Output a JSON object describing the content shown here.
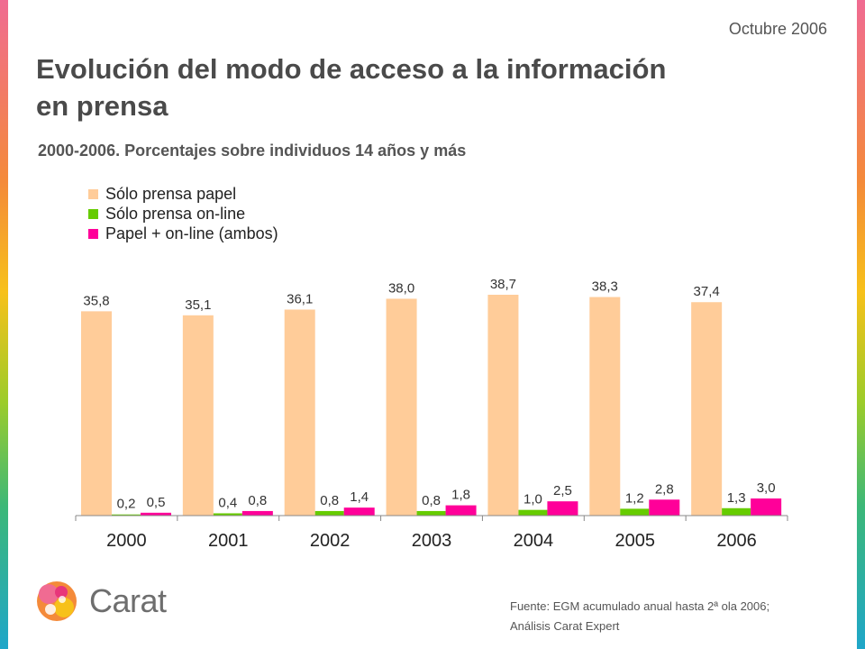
{
  "header": {
    "date": "Octubre 2006",
    "title_line1": "Evolución del modo de acceso a la información",
    "title_line2": "en prensa",
    "subtitle": "2000-2006. Porcentajes sobre individuos 14 años y más"
  },
  "chart_data": {
    "type": "bar",
    "categories": [
      "2000",
      "2001",
      "2002",
      "2003",
      "2004",
      "2005",
      "2006"
    ],
    "series": [
      {
        "name": "Sólo prensa papel",
        "color": "#FFCC99",
        "values": [
          35.8,
          35.1,
          36.1,
          38.0,
          38.7,
          38.3,
          37.4
        ],
        "labels": [
          "35,8",
          "35,1",
          "36,1",
          "38,0",
          "38,7",
          "38,3",
          "37,4"
        ]
      },
      {
        "name": "Sólo prensa on-line",
        "color": "#66CC00",
        "values": [
          0.2,
          0.4,
          0.8,
          0.8,
          1.0,
          1.2,
          1.3
        ],
        "labels": [
          "0,2",
          "0,4",
          "0,8",
          "0,8",
          "1,0",
          "1,2",
          "1,3"
        ]
      },
      {
        "name": "Papel + on-line (ambos)",
        "color": "#FF0099",
        "values": [
          0.5,
          0.8,
          1.4,
          1.8,
          2.5,
          2.8,
          3.0
        ],
        "labels": [
          "0,5",
          "0,8",
          "1,4",
          "1,8",
          "2,5",
          "2,8",
          "3,0"
        ]
      }
    ],
    "ylim": [
      0,
      40
    ],
    "grid": false,
    "legend_position": "top-left"
  },
  "footer": {
    "logo_text": "Carat",
    "source_line1": "Fuente: EGM acumulado anual hasta 2ª ola 2006;",
    "source_line2": "Análisis Carat Expert"
  }
}
